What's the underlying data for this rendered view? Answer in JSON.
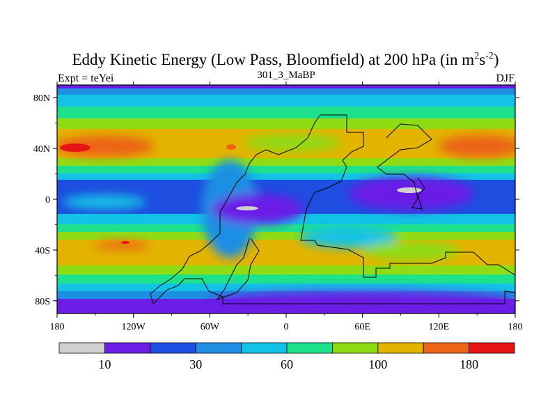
{
  "chart_data": {
    "type": "heatmap",
    "title": "Eddy Kinetic Energy (Low Pass, Bloomfield) at 200 hPa (in m",
    "title_sup1": "2",
    "title_mid": "s",
    "title_sup2": "-2",
    "title_end": ")",
    "subtitle": "301_3_MaBP",
    "left_label": "Expt = teYei",
    "right_label": "DJF",
    "x_range": [
      -180,
      180
    ],
    "y_range": [
      -90,
      90
    ],
    "x_ticks": [
      {
        "value": -180,
        "label": "180"
      },
      {
        "value": -120,
        "label": "120W"
      },
      {
        "value": -60,
        "label": "60W"
      },
      {
        "value": 0,
        "label": "0"
      },
      {
        "value": 60,
        "label": "60E"
      },
      {
        "value": 120,
        "label": "120E"
      },
      {
        "value": 180,
        "label": "180"
      }
    ],
    "y_ticks": [
      {
        "value": 80,
        "label": "80N"
      },
      {
        "value": 40,
        "label": "40N"
      },
      {
        "value": 0,
        "label": "0"
      },
      {
        "value": -40,
        "label": "40S"
      },
      {
        "value": -80,
        "label": "80S"
      }
    ],
    "colorbar": {
      "colors": [
        "#d0d0d0",
        "#6a1ee6",
        "#1e4ee0",
        "#1e8fe2",
        "#12c3e6",
        "#1ee18c",
        "#8fdc14",
        "#e2b400",
        "#ec6414",
        "#e61414"
      ],
      "levels": [
        0,
        10,
        20,
        30,
        45,
        60,
        80,
        100,
        140,
        180
      ],
      "labels": [
        {
          "after_bin": 1,
          "text": "10"
        },
        {
          "after_bin": 3,
          "text": "30"
        },
        {
          "after_bin": 5,
          "text": "60"
        },
        {
          "after_bin": 7,
          "text": "100"
        },
        {
          "after_bin": 9,
          "text": "180"
        }
      ]
    }
  }
}
